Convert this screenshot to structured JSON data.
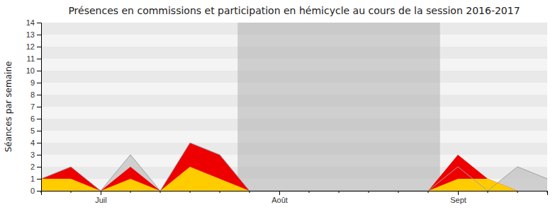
{
  "chart_data": {
    "type": "area",
    "title": "Présences en commissions et participation en hémicycle au cours de la session 2016-2017",
    "ylabel": "Séances par semaine",
    "x": [
      0,
      1,
      2,
      3,
      4,
      5,
      6,
      7,
      8,
      9,
      10,
      11,
      12,
      13,
      14,
      15,
      16,
      17
    ],
    "series": [
      {
        "color": "#c8c8c8",
        "values": [
          1,
          2,
          0,
          3,
          0,
          4,
          3,
          0,
          0,
          0,
          0,
          0,
          0,
          0,
          2,
          0,
          2,
          1
        ]
      },
      {
        "color": "#ee0000",
        "values": [
          1,
          2,
          0,
          2,
          0,
          4,
          3,
          0,
          0,
          0,
          0,
          0,
          0,
          0,
          3,
          1,
          0,
          0
        ]
      },
      {
        "color": "#ffcc00",
        "values": [
          1,
          1,
          0,
          1,
          0,
          2,
          1,
          0,
          0,
          0,
          0,
          0,
          0,
          0,
          1,
          1,
          0,
          0
        ]
      }
    ],
    "xlim": [
      0,
      17
    ],
    "xticks": [
      {
        "value": 2,
        "label": "Juil"
      },
      {
        "value": 8,
        "label": "Août"
      },
      {
        "value": 14,
        "label": "Sept"
      }
    ],
    "ylim": [
      0,
      14
    ],
    "yticks": [
      0,
      1,
      2,
      3,
      4,
      5,
      6,
      7,
      8,
      9,
      10,
      11,
      12,
      13,
      14
    ],
    "shade": {
      "xlim": [
        6.6,
        13.4
      ],
      "color": "#b0b0b0"
    },
    "grid": true
  }
}
